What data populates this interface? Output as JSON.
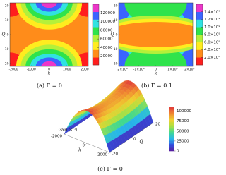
{
  "chart_data": [
    {
      "type": "contour",
      "caption": "(a) Γ = 0",
      "xlabel": "k",
      "ylabel": "Q",
      "xlim": [
        -2200,
        2200
      ],
      "xticks": [
        -2000,
        -1000,
        0,
        1000,
        2000
      ],
      "ylim": [
        -22,
        22
      ],
      "yticks": [
        -20,
        -10,
        0,
        10,
        20
      ],
      "clim": [
        0,
        140000
      ],
      "cticks": [
        20000,
        40000,
        60000,
        80000,
        100000,
        120000
      ],
      "colors": [
        "#ff1e1e",
        "#ff8c1a",
        "#ffec1f",
        "#b4f03a",
        "#2fe34c",
        "#30e2e2",
        "#3a64ff",
        "#ec36c8"
      ]
    },
    {
      "type": "contour",
      "caption": "(b) Γ = 0.1",
      "xlabel": "k",
      "ylabel": "Q",
      "xlim": [
        -2200000,
        2200000
      ],
      "xticks": [
        {
          "value": -2000000,
          "label": "-2×10⁶"
        },
        {
          "value": -1000000,
          "label": "-1×10⁶"
        },
        0,
        {
          "value": 1000000,
          "label": "1×10⁶"
        },
        {
          "value": 2000000,
          "label": "2×10⁶"
        }
      ],
      "ylim": [
        -22,
        22
      ],
      "yticks": [
        -20,
        -10,
        0,
        10,
        20
      ],
      "clim": [
        0,
        1600000000
      ],
      "cticks": [
        {
          "value": 200000000,
          "label": "2.0×10⁸"
        },
        {
          "value": 400000000,
          "label": "4.0×10⁸"
        },
        {
          "value": 600000000,
          "label": "6.0×10⁸"
        },
        {
          "value": 800000000,
          "label": "8.0×10⁸"
        },
        {
          "value": 1000000000,
          "label": "1.0×10⁹"
        },
        {
          "value": 1200000000,
          "label": "1.2×10⁹"
        },
        {
          "value": 1400000000,
          "label": "1.4×10⁹"
        }
      ],
      "colors": [
        "#ff1e1e",
        "#ff8c1a",
        "#ffec1f",
        "#b4f03a",
        "#2fe34c",
        "#30e2e2",
        "#3a64ff",
        "#ec36c8"
      ]
    },
    {
      "type": "surface",
      "caption": "(c) Γ = 0",
      "zlabel": "Gain (s⁻¹)",
      "xlabel": "k",
      "ylabel": "Q",
      "xlim": [
        -2000,
        2000
      ],
      "xticks": [
        -2000,
        0,
        2000
      ],
      "ylim": [
        -20,
        20
      ],
      "yticks": [
        -20,
        0,
        20
      ],
      "clim": [
        0,
        110000
      ],
      "cticks": [
        0,
        25000,
        50000,
        75000,
        100000
      ],
      "colors": [
        "#5a1a9a",
        "#3050e0",
        "#28b8e8",
        "#40d890",
        "#b0e040",
        "#f0d030",
        "#f08a30",
        "#e03a3a"
      ]
    }
  ]
}
